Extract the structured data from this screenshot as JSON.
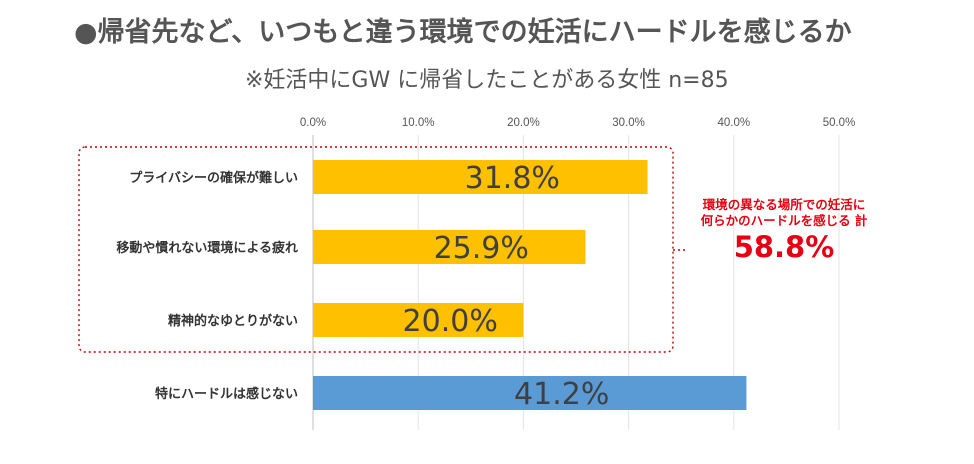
{
  "title": "●帰省先など、いつもと違う環境での妊活にハードルを感じるか",
  "subtitle": "※妊活中にGW に帰省したことがある女性 n=85",
  "callout": {
    "line1": "環境の異なる場所での妊活に",
    "line2": "何らかのハードルを感じる 計",
    "total": "58.8%"
  },
  "chart_data": {
    "type": "bar",
    "orientation": "horizontal",
    "categories": [
      "プライバシーの確保が難しい",
      "移動や慣れない環境による疲れ",
      "精神的なゆとりがない",
      "特にハードルは感じない"
    ],
    "values": [
      31.8,
      25.9,
      20.0,
      41.2
    ],
    "data_labels": [
      "31.8%",
      "25.9%",
      "20.0%",
      "41.2%"
    ],
    "ticks": [
      "0.0%",
      "10.0%",
      "20.0%",
      "30.0%",
      "40.0%",
      "50.0%"
    ],
    "xlim": [
      0,
      50
    ],
    "grid": true,
    "colors": [
      "#ffc000",
      "#ffc000",
      "#ffc000",
      "#5b9bd5"
    ],
    "grouped_categories": [
      0,
      1,
      2
    ]
  }
}
